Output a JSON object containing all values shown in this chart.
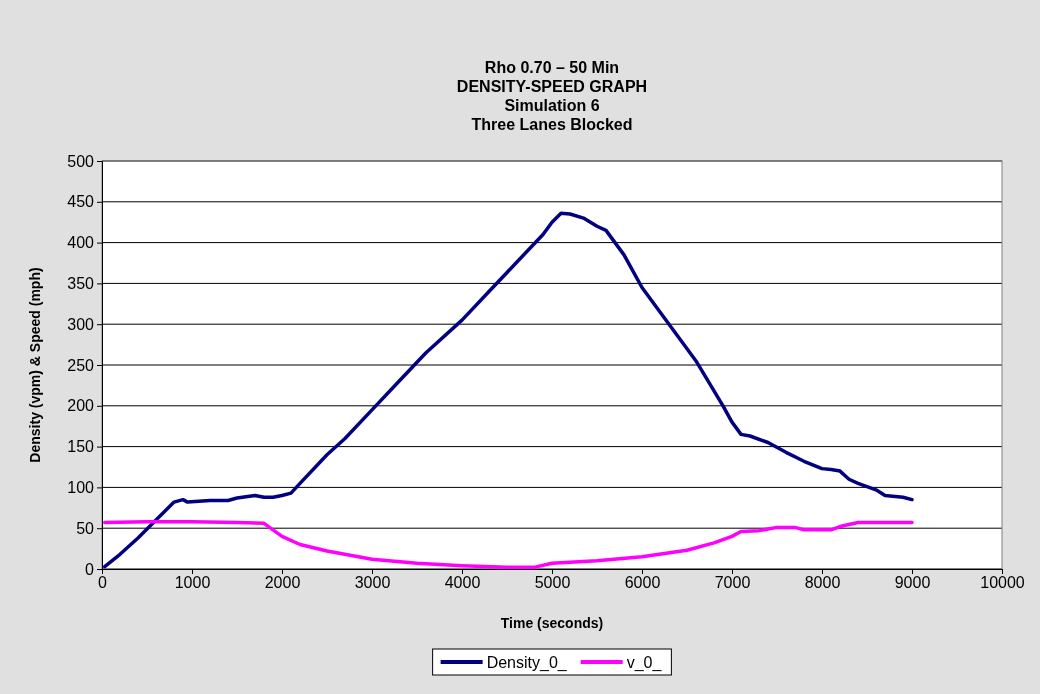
{
  "chart_data": {
    "type": "line",
    "title": "Rho 0.70 – 50 Min\nDENSITY-SPEED GRAPH\nSimulation 6\nThree Lanes Blocked",
    "xlabel": "Time (seconds)",
    "ylabel": "Density (vpm) & Speed (mph)",
    "xlim": [
      0,
      10000
    ],
    "xticks": [
      0,
      1000,
      2000,
      3000,
      4000,
      5000,
      6000,
      7000,
      8000,
      9000,
      10000
    ],
    "ylim": [
      0,
      500
    ],
    "yticks": [
      0,
      50,
      100,
      150,
      200,
      250,
      300,
      350,
      400,
      450,
      500
    ],
    "grid": "y",
    "legend": "bottom",
    "marker": "none",
    "line_style": "solid",
    "series": [
      {
        "name": "Density_0_",
        "color": "#000080",
        "x": [
          30,
          200,
          400,
          600,
          800,
          900,
          950,
          1200,
          1400,
          1500,
          1700,
          1800,
          1900,
          2000,
          2100,
          2200,
          2500,
          2700,
          3000,
          3300,
          3600,
          4000,
          4300,
          4600,
          4900,
          5000,
          5100,
          5200,
          5350,
          5500,
          5600,
          5800,
          6000,
          6300,
          6600,
          6900,
          7000,
          7100,
          7200,
          7400,
          7600,
          7800,
          8000,
          8100,
          8200,
          8300,
          8400,
          8600,
          8700,
          8900,
          9000
        ],
        "values": [
          3,
          18,
          38,
          60,
          82,
          85,
          82,
          84,
          84,
          87,
          90,
          88,
          88,
          90,
          93,
          105,
          140,
          160,
          195,
          230,
          265,
          305,
          340,
          375,
          410,
          425,
          436,
          435,
          430,
          420,
          415,
          385,
          345,
          300,
          255,
          200,
          180,
          165,
          163,
          155,
          143,
          132,
          123,
          122,
          120,
          110,
          105,
          97,
          90,
          88,
          85
        ]
      },
      {
        "name": "v_0_",
        "color": "#ff00ff",
        "x": [
          30,
          500,
          1000,
          1500,
          1800,
          1900,
          2000,
          2200,
          2500,
          3000,
          3500,
          4000,
          4500,
          4800,
          5000,
          5500,
          6000,
          6500,
          6800,
          7000,
          7100,
          7300,
          7500,
          7700,
          7800,
          8000,
          8100,
          8200,
          8400,
          8700,
          9000
        ],
        "values": [
          57,
          58,
          58,
          57,
          56,
          48,
          40,
          30,
          22,
          12,
          7,
          4,
          2,
          2,
          7,
          10,
          15,
          23,
          32,
          40,
          46,
          47,
          51,
          51,
          48,
          48,
          48,
          52,
          57,
          57,
          57
        ]
      }
    ]
  }
}
